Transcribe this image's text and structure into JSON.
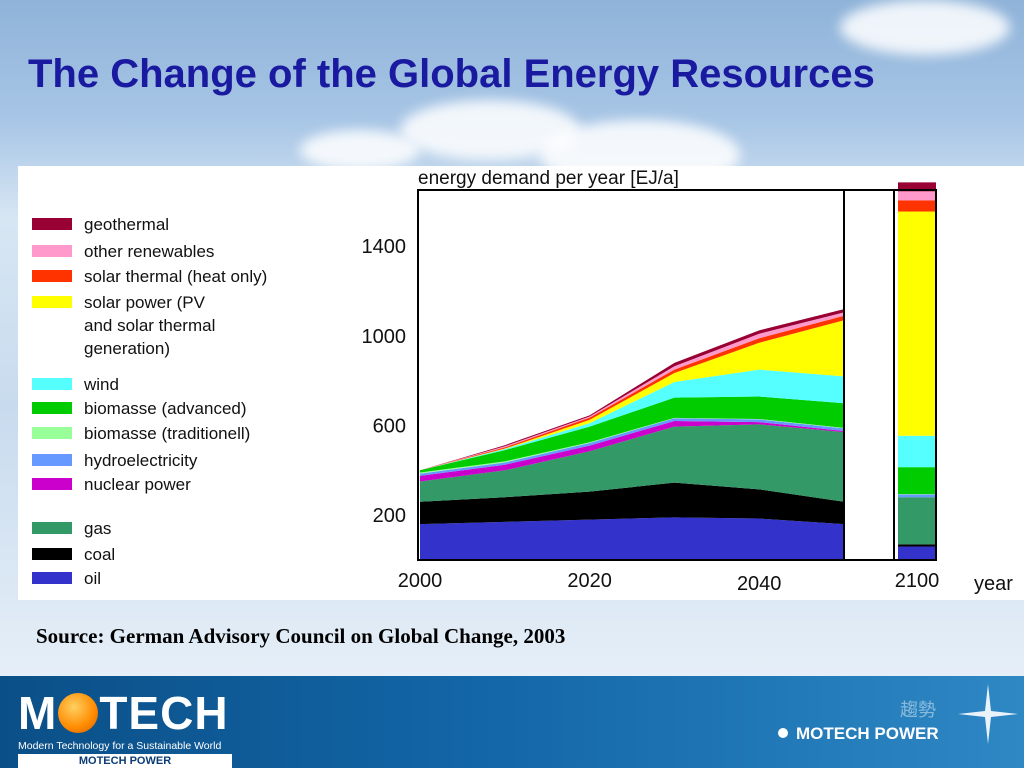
{
  "title": "The Change of the Global Energy Resources",
  "source": "Source: German Advisory Council on Global Change, 2003",
  "footer": {
    "logo_main_left": "M",
    "logo_main_right": "TECH",
    "logo_tagline": "Modern Technology for a Sustainable World",
    "logo_brand": "MOTECH POWER",
    "brand_right": "MOTECH POWER",
    "chinese_text": "趨勢"
  },
  "chart_data": {
    "type": "area",
    "title": "energy demand per year [EJ/a]",
    "xlabel": "year",
    "x": [
      2000,
      2010,
      2020,
      2030,
      2040,
      2050
    ],
    "x_ticks": [
      "2000",
      "2020",
      "2040",
      "2100"
    ],
    "y_ticks": [
      "200",
      "600",
      "1000",
      "1400"
    ],
    "ylim": [
      0,
      1650
    ],
    "break_between": [
      2050,
      2100
    ],
    "stacked": true,
    "legend_position": "left",
    "series": [
      {
        "name": "oil",
        "color": "#3333cc",
        "values": [
          160,
          170,
          180,
          190,
          185,
          160
        ],
        "value_2100": 60
      },
      {
        "name": "coal",
        "color": "#000000",
        "values": [
          100,
          110,
          125,
          155,
          130,
          100
        ],
        "value_2100": 10
      },
      {
        "name": "gas",
        "color": "#339966",
        "values": [
          90,
          120,
          180,
          250,
          290,
          310
        ],
        "value_2100": 210
      },
      {
        "name": "nuclear power",
        "color": "#cc00cc",
        "values": [
          25,
          25,
          25,
          25,
          10,
          5
        ],
        "value_2100": 0
      },
      {
        "name": "hydroelectricity",
        "color": "#6699ff",
        "values": [
          10,
          10,
          12,
          12,
          12,
          12
        ],
        "value_2100": 12
      },
      {
        "name": "biomasse (traditionell)",
        "color": "#99ff99",
        "values": [
          5,
          5,
          3,
          2,
          2,
          2
        ],
        "value_2100": 2
      },
      {
        "name": "biomasse (advanced)",
        "color": "#00cc00",
        "values": [
          10,
          50,
          70,
          90,
          100,
          110
        ],
        "value_2100": 120
      },
      {
        "name": "wind",
        "color": "#55ffff",
        "values": [
          0,
          5,
          15,
          70,
          120,
          120
        ],
        "value_2100": 140
      },
      {
        "name": "solar power (PV\nand solar thermal\ngeneration)",
        "color": "#ffff00",
        "values": [
          0,
          2,
          15,
          40,
          120,
          250
        ],
        "value_2100": 1000
      },
      {
        "name": "solar thermal (heat only)",
        "color": "#ff3300",
        "values": [
          0,
          5,
          10,
          15,
          20,
          20
        ],
        "value_2100": 50
      },
      {
        "name": "other renewables",
        "color": "#ff99cc",
        "values": [
          0,
          5,
          5,
          15,
          20,
          15
        ],
        "value_2100": 40
      },
      {
        "name": "geothermal",
        "color": "#990033",
        "values": [
          0,
          5,
          5,
          15,
          15,
          15
        ],
        "value_2100": 40
      }
    ]
  }
}
